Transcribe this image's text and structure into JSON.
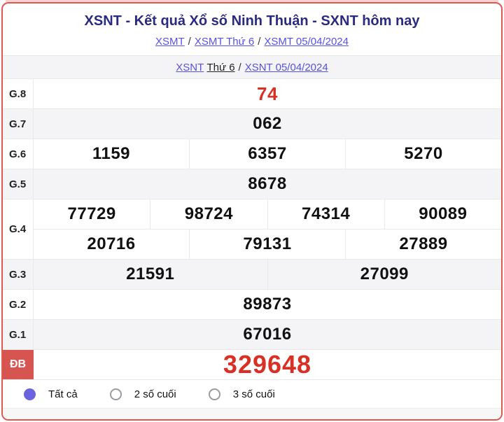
{
  "colors": {
    "card_border": "#dd5a52",
    "title_navy": "#2a2a80",
    "link_blue": "#5552e0",
    "number_red": "#d93025",
    "db_label_bg": "#d65550",
    "radio_selected": "#6b62e0",
    "row_shade": "#f4f4f6"
  },
  "header": {
    "title": "XSNT - Kết quả Xổ số Ninh Thuận - SXNT hôm nay",
    "sep": "/",
    "breadcrumb1": [
      "XSMT",
      "XSMT Thứ 6",
      "XSMT 05/04/2024"
    ],
    "breadcrumb2": {
      "link1": "XSNT",
      "current": "Thứ 6",
      "link2": "XSNT 05/04/2024"
    }
  },
  "results": {
    "rows": [
      {
        "label": "G.8",
        "values": [
          "74"
        ]
      },
      {
        "label": "G.7",
        "values": [
          "062"
        ]
      },
      {
        "label": "G.6",
        "values": [
          "1159",
          "6357",
          "5270"
        ]
      },
      {
        "label": "G.5",
        "values": [
          "8678"
        ]
      },
      {
        "label": "G.4",
        "row1": [
          "77729",
          "98724",
          "74314",
          "90089"
        ],
        "row2": [
          "20716",
          "79131",
          "27889"
        ]
      },
      {
        "label": "G.3",
        "values": [
          "21591",
          "27099"
        ]
      },
      {
        "label": "G.2",
        "values": [
          "89873"
        ]
      },
      {
        "label": "G.1",
        "values": [
          "67016"
        ]
      },
      {
        "label": "ĐB",
        "values": [
          "329648"
        ]
      }
    ]
  },
  "filters": {
    "options": [
      {
        "label": "Tất cả",
        "selected": true
      },
      {
        "label": "2 số cuối",
        "selected": false
      },
      {
        "label": "3 số cuối",
        "selected": false
      }
    ]
  }
}
